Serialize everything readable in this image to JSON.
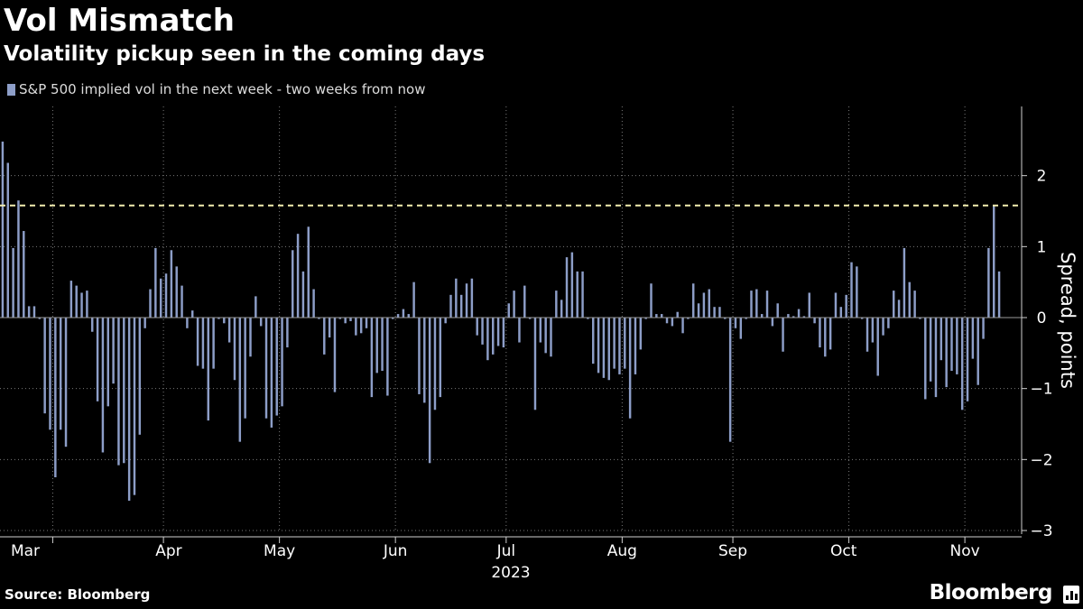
{
  "header": {
    "title": "Vol Mismatch",
    "subtitle": "Volatility pickup seen in the coming days"
  },
  "legend": {
    "label": "S&P 500 implied vol in the next week - two weeks from now"
  },
  "footer": {
    "source": "Source: Bloomberg",
    "brand": "Bloomberg"
  },
  "colors": {
    "bar": "#8d9ec8",
    "threshold": "#f3eeb0",
    "grid": "#7a7a7a",
    "background": "#000000"
  },
  "chart_data": {
    "type": "bar",
    "series": [
      {
        "name": "S&P 500 implied vol in the next week - two weeks from now",
        "values": [
          2.48,
          2.18,
          0.98,
          1.65,
          1.22,
          0.16,
          0.16,
          -0.02,
          -1.35,
          -1.58,
          -2.25,
          -1.58,
          -1.82,
          0.52,
          0.45,
          0.35,
          0.38,
          -0.2,
          -1.18,
          -1.9,
          -1.25,
          -0.93,
          -2.08,
          -2.05,
          -2.58,
          -2.5,
          -1.65,
          -0.15,
          0.4,
          0.98,
          0.55,
          0.62,
          0.95,
          0.72,
          0.45,
          -0.15,
          0.1,
          -0.68,
          -0.72,
          -1.45,
          -0.72,
          -0.02,
          -0.08,
          -0.35,
          -0.88,
          -1.75,
          -1.42,
          -0.55,
          0.3,
          -0.12,
          -1.42,
          -1.55,
          -1.38,
          -1.25,
          -0.42,
          0.95,
          1.18,
          0.65,
          1.28,
          0.4,
          -0.02,
          -0.52,
          -0.28,
          -1.05,
          -0.02,
          -0.08,
          -0.05,
          -0.25,
          -0.22,
          -0.15,
          -1.12,
          -0.78,
          -0.75,
          -1.1,
          -0.02,
          0.05,
          0.12,
          0.05,
          0.5,
          -1.08,
          -1.2,
          -2.05,
          -1.3,
          -1.12,
          -0.08,
          0.32,
          0.55,
          0.32,
          0.48,
          0.55,
          -0.25,
          -0.38,
          -0.6,
          -0.52,
          -0.4,
          -0.42,
          0.2,
          0.38,
          -0.35,
          0.45,
          -0.02,
          -1.3,
          -0.35,
          -0.5,
          -0.55,
          0.38,
          0.25,
          0.85,
          0.92,
          0.65,
          0.65,
          -0.02,
          -0.65,
          -0.78,
          -0.85,
          -0.88,
          -0.72,
          -0.8,
          -0.72,
          -1.42,
          -0.8,
          -0.45,
          -0.02,
          0.48,
          0.05,
          0.05,
          -0.08,
          -0.12,
          0.08,
          -0.22,
          -0.02,
          0.48,
          0.2,
          0.35,
          0.4,
          0.15,
          0.15,
          -0.02,
          -1.75,
          -0.15,
          -0.3,
          -0.02,
          0.38,
          0.4,
          0.05,
          0.38,
          -0.12,
          0.2,
          -0.48,
          0.05,
          0.02,
          0.12,
          0.02,
          0.35,
          -0.08,
          -0.42,
          -0.55,
          -0.45,
          0.35,
          0.15,
          0.32,
          0.78,
          0.72,
          -0.02,
          -0.48,
          -0.35,
          -0.82,
          -0.25,
          -0.15,
          0.38,
          0.25,
          0.98,
          0.5,
          0.38,
          -0.02,
          -1.15,
          -0.9,
          -1.12,
          -0.6,
          -0.98,
          -0.75,
          -0.8,
          -1.3,
          -1.18,
          -0.58,
          -0.95,
          -0.3,
          0.98,
          1.58,
          0.65
        ]
      }
    ],
    "threshold": 1.58,
    "xlabel": "2023",
    "ylabel": "Spread, points",
    "ylim": [
      -3,
      3
    ],
    "yticks": [
      2,
      1,
      0,
      -1,
      -2,
      -3
    ],
    "xticks": [
      "Mar",
      "Apr",
      "May",
      "Jun",
      "Jul",
      "Aug",
      "Sep",
      "Oct",
      "Nov"
    ],
    "xtick_positions": [
      0,
      22,
      43,
      65,
      86,
      108,
      129,
      150,
      173
    ],
    "xgrid_positions": [
      10,
      31,
      53,
      75,
      96,
      118,
      139,
      161,
      183
    ],
    "grid": true,
    "legend_position": "top-left"
  }
}
